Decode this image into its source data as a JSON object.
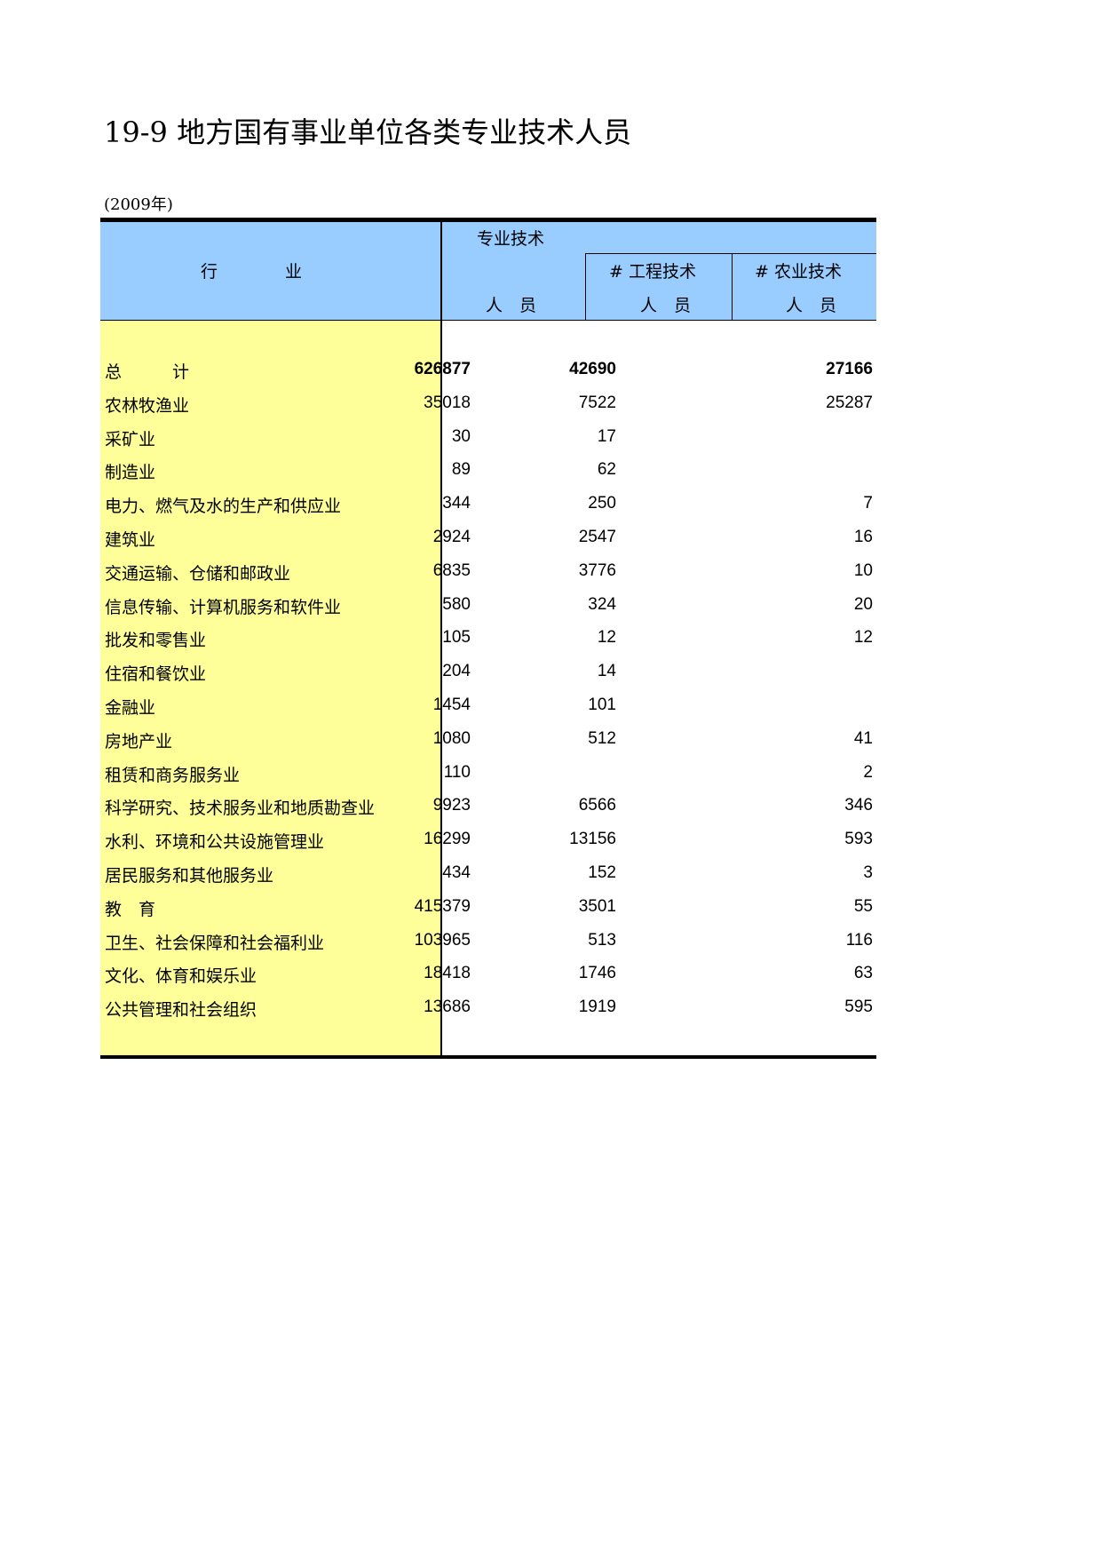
{
  "title": "19-9  地方国有事业单位各类专业技术人员",
  "year_note": "(2009年)",
  "header": {
    "industry": "行　　　　业",
    "col1_top": "专业技术",
    "col1_bottom": "人　员",
    "col2_top": "# 工程技术",
    "col2_bottom": "人　员",
    "col3_top": "# 农业技术",
    "col3_bottom": "人　员"
  },
  "rows": [
    {
      "name": "总　　　计",
      "v1": "626877",
      "v2": "42690",
      "v3": "27166"
    },
    {
      "name": "农林牧渔业",
      "v1": "35018",
      "v2": "7522",
      "v3": "25287"
    },
    {
      "name": "采矿业",
      "v1": "30",
      "v2": "17",
      "v3": ""
    },
    {
      "name": "制造业",
      "v1": "89",
      "v2": "62",
      "v3": ""
    },
    {
      "name": "电力、燃气及水的生产和供应业",
      "v1": "344",
      "v2": "250",
      "v3": "7"
    },
    {
      "name": "建筑业",
      "v1": "2924",
      "v2": "2547",
      "v3": "16"
    },
    {
      "name": "交通运输、仓储和邮政业",
      "v1": "6835",
      "v2": "3776",
      "v3": "10"
    },
    {
      "name": "信息传输、计算机服务和软件业",
      "v1": "580",
      "v2": "324",
      "v3": "20"
    },
    {
      "name": "批发和零售业",
      "v1": "105",
      "v2": "12",
      "v3": "12"
    },
    {
      "name": "住宿和餐饮业",
      "v1": "204",
      "v2": "14",
      "v3": ""
    },
    {
      "name": "金融业",
      "v1": "1454",
      "v2": "101",
      "v3": ""
    },
    {
      "name": "房地产业",
      "v1": "1080",
      "v2": "512",
      "v3": "41"
    },
    {
      "name": "租赁和商务服务业",
      "v1": "110",
      "v2": "",
      "v3": "2"
    },
    {
      "name": "科学研究、技术服务业和地质勘查业",
      "v1": "9923",
      "v2": "6566",
      "v3": "346"
    },
    {
      "name": "水利、环境和公共设施管理业",
      "v1": "16299",
      "v2": "13156",
      "v3": "593"
    },
    {
      "name": "居民服务和其他服务业",
      "v1": "434",
      "v2": "152",
      "v3": "3"
    },
    {
      "name": "教　育",
      "v1": "415379",
      "v2": "3501",
      "v3": "55"
    },
    {
      "name": "卫生、社会保障和社会福利业",
      "v1": "103965",
      "v2": "513",
      "v3": "116"
    },
    {
      "name": "文化、体育和娱乐业",
      "v1": "18418",
      "v2": "1746",
      "v3": "63"
    },
    {
      "name": "公共管理和社会组织",
      "v1": "13686",
      "v2": "1919",
      "v3": "595"
    }
  ],
  "colors": {
    "header_bg": "#99ccff",
    "label_bg": "#ffff99"
  }
}
